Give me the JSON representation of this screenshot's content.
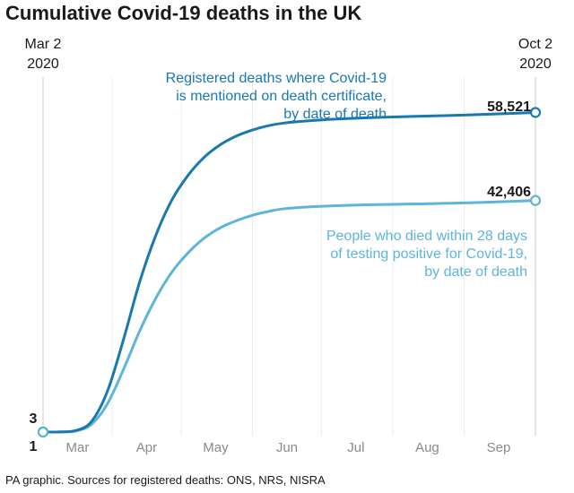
{
  "chart_data": {
    "type": "line",
    "title": "Cumulative Covid-19 deaths in the UK",
    "x_start_label": [
      "Mar 2",
      "2020"
    ],
    "x_end_label": [
      "Oct 2",
      "2020"
    ],
    "x_start": "2020-03-02",
    "x_end": "2020-10-02",
    "month_labels": [
      {
        "label": "Mar",
        "date": "2020-03-17"
      },
      {
        "label": "Apr",
        "date": "2020-04-16"
      },
      {
        "label": "May",
        "date": "2020-05-16"
      },
      {
        "label": "Jun",
        "date": "2020-06-16"
      },
      {
        "label": "Jul",
        "date": "2020-07-16"
      },
      {
        "label": "Aug",
        "date": "2020-08-16"
      },
      {
        "label": "Sep",
        "date": "2020-09-16"
      }
    ],
    "start_value_labels": [
      "3",
      "1"
    ],
    "ylim": [
      0,
      65000
    ],
    "series": [
      {
        "key": "registered",
        "color": "#1a78b0",
        "end_label": "58,521",
        "annotation": [
          "Registered deaths where Covid-19",
          "is mentioned on death certificate,",
          "by date of death"
        ],
        "points": [
          [
            "2020-03-02",
            3
          ],
          [
            "2020-03-09",
            30
          ],
          [
            "2020-03-16",
            250
          ],
          [
            "2020-03-23",
            1900
          ],
          [
            "2020-03-30",
            7500
          ],
          [
            "2020-04-06",
            17000
          ],
          [
            "2020-04-13",
            27500
          ],
          [
            "2020-04-20",
            36000
          ],
          [
            "2020-04-27",
            42500
          ],
          [
            "2020-05-04",
            47000
          ],
          [
            "2020-05-11",
            50300
          ],
          [
            "2020-05-18",
            52600
          ],
          [
            "2020-05-25",
            54200
          ],
          [
            "2020-06-01",
            55300
          ],
          [
            "2020-06-08",
            56100
          ],
          [
            "2020-06-15",
            56600
          ],
          [
            "2020-06-29",
            57100
          ],
          [
            "2020-07-15",
            57450
          ],
          [
            "2020-08-01",
            57700
          ],
          [
            "2020-08-15",
            57850
          ],
          [
            "2020-09-01",
            58050
          ],
          [
            "2020-09-15",
            58250
          ],
          [
            "2020-10-02",
            58521
          ]
        ]
      },
      {
        "key": "tested",
        "color": "#5fb4dc",
        "end_label": "42,406",
        "annotation": [
          "People who died within 28 days",
          "of testing positive for Covid-19,",
          "by date of death"
        ],
        "points": [
          [
            "2020-03-02",
            1
          ],
          [
            "2020-03-09",
            20
          ],
          [
            "2020-03-16",
            180
          ],
          [
            "2020-03-23",
            1400
          ],
          [
            "2020-03-30",
            5200
          ],
          [
            "2020-04-06",
            11500
          ],
          [
            "2020-04-13",
            18500
          ],
          [
            "2020-04-20",
            24500
          ],
          [
            "2020-04-27",
            29300
          ],
          [
            "2020-05-04",
            32800
          ],
          [
            "2020-05-11",
            35500
          ],
          [
            "2020-05-18",
            37400
          ],
          [
            "2020-05-25",
            38700
          ],
          [
            "2020-06-01",
            39700
          ],
          [
            "2020-06-08",
            40400
          ],
          [
            "2020-06-15",
            40900
          ],
          [
            "2020-06-29",
            41300
          ],
          [
            "2020-07-15",
            41550
          ],
          [
            "2020-08-01",
            41700
          ],
          [
            "2020-08-15",
            41800
          ],
          [
            "2020-09-01",
            41950
          ],
          [
            "2020-09-15",
            42150
          ],
          [
            "2020-10-02",
            42406
          ]
        ]
      }
    ],
    "grid": "vertical"
  },
  "footer": {
    "source": "PA graphic. Sources for registered deaths: ONS, NRS, NISRA"
  }
}
